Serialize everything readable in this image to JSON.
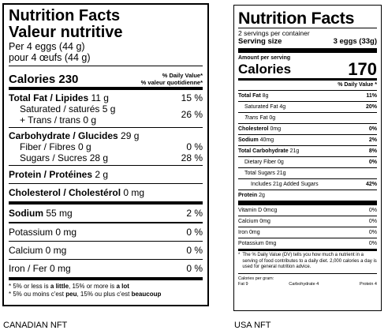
{
  "canadian": {
    "title_en": "Nutrition Facts",
    "title_fr": "Valeur nutritive",
    "serving_en": "Per 4 eggs (44 g)",
    "serving_fr": "pour 4 œufs (44 g)",
    "calories_label": "Calories 230",
    "dv_header_en": "% Daily Value*",
    "dv_header_fr": "% valeur quotidienne*",
    "total_fat": {
      "label": "Total Fat / Lipides",
      "amount": "11 g",
      "pct": "15 %"
    },
    "saturated": {
      "label": "Saturated / saturés 5 g"
    },
    "trans": {
      "label": "+ Trans / trans 0 g"
    },
    "sat_trans_pct": "26 %",
    "carbohydrate": {
      "label": "Carbohydrate / Glucides",
      "amount": "29 g"
    },
    "fiber": {
      "label": "Fiber / Fibres 0 g",
      "pct": "0 %"
    },
    "sugars": {
      "label": "Sugars / Sucres 28 g",
      "pct": "28 %"
    },
    "protein": {
      "label": "Protein / Protéines",
      "amount": "2 g"
    },
    "cholesterol": {
      "label": "Cholesterol / Cholestérol",
      "amount": "0 mg"
    },
    "sodium": {
      "label": "Sodium",
      "amount": "55 mg",
      "pct": "2 %"
    },
    "potassium": {
      "label": "Potassium 0 mg",
      "pct": "0 %"
    },
    "calcium": {
      "label": "Calcium 0 mg",
      "pct": "0 %"
    },
    "iron": {
      "label": "Iron / Fer 0 mg",
      "pct": "0 %"
    },
    "footnote_en": {
      "a": "* 5% or less is ",
      "b": "a little",
      "c": ", 15% or more is ",
      "d": "a lot"
    },
    "footnote_fr": {
      "a": "* 5% ou moins c'est ",
      "b": "peu",
      "c": ", 15% ou plus c'est ",
      "d": "beaucoup"
    }
  },
  "usa": {
    "title": "Nutrition Facts",
    "servings_per_container": "2 servings per container",
    "serving_size_label": "Serving size",
    "serving_size_value": "3 eggs (33g)",
    "amount_per_serving": "Amount per serving",
    "calories_label": "Calories",
    "calories_value": "170",
    "dv_header": "% Daily Value *",
    "total_fat": {
      "label": "Total Fat",
      "amount": "8g",
      "pct": "11%"
    },
    "saturated_fat": {
      "label": "Saturated Fat",
      "amount": "4g",
      "pct": "20%"
    },
    "trans_fat": {
      "label": "Trans",
      "amount": "Fat 0g"
    },
    "cholesterol": {
      "label": "Cholesterol",
      "amount": "0mg",
      "pct": "0%"
    },
    "sodium": {
      "label": "Sodium",
      "amount": "40mg",
      "pct": "2%"
    },
    "total_carb": {
      "label": "Total Carbohydrate",
      "amount": "21g",
      "pct": "8%"
    },
    "dietary_fiber": {
      "label": "Dietary Fiber",
      "amount": "0g",
      "pct": "0%"
    },
    "total_sugars": {
      "label": "Total Sugars 21g"
    },
    "added_sugars": {
      "label": "Includes 21g Added Sugars",
      "pct": "42%"
    },
    "protein": {
      "label": "Protein",
      "amount": "2g"
    },
    "vitamin_d": {
      "label": "Vitamin D 0mcg",
      "pct": "0%"
    },
    "calcium": {
      "label": "Calcium 0mg",
      "pct": "0%"
    },
    "iron": {
      "label": "Iron 0mg",
      "pct": "0%"
    },
    "potassium": {
      "label": "Potassium 0mg",
      "pct": "0%"
    },
    "footnote_star": "*",
    "footnote": "The % Daily Value (DV) tells you how much a nutrient in a serving of food contributes to a daily diet. 2,000 calories a day is used for general nutrition advice.",
    "calories_per_gram": "Calories per gram:",
    "cpg_fat": "Fat 9",
    "cpg_carb": "Carbohydrate 4",
    "cpg_protein": "Protein 4"
  },
  "captions": {
    "left": "CANADIAN NFT",
    "right": "USA NFT"
  }
}
